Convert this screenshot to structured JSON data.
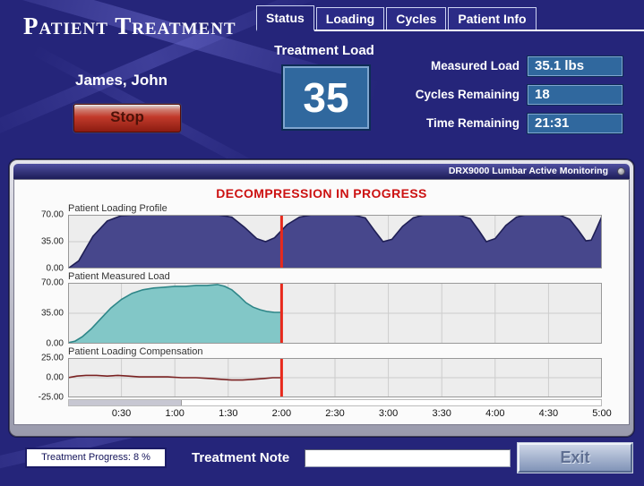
{
  "app": {
    "title": "Patient Treatment",
    "patient_name": "James, John"
  },
  "header": {
    "stop_button": "Stop",
    "tabs": [
      {
        "label": "Status",
        "active": true
      },
      {
        "label": "Loading",
        "active": false
      },
      {
        "label": "Cycles",
        "active": false
      },
      {
        "label": "Patient Info",
        "active": false
      }
    ],
    "treatment_load_label": "Treatment Load",
    "treatment_load_value": "35",
    "readouts": [
      {
        "label": "Measured Load",
        "value": "35.1 lbs"
      },
      {
        "label": "Cycles Remaining",
        "value": "18"
      },
      {
        "label": "Time Remaining",
        "value": "21:31"
      }
    ]
  },
  "monitor": {
    "titlebar": "DRX9000 Lumbar Active Monitoring",
    "pin_icon": "pin-icon",
    "status_message": "DECOMPRESSION IN PROGRESS",
    "x_axis_labels": [
      "0:30",
      "1:00",
      "1:30",
      "2:00",
      "2:30",
      "3:00",
      "3:30",
      "4:00",
      "4:30",
      "5:00"
    ]
  },
  "footer": {
    "progress_label": "Treatment Progress: 8 %",
    "note_label": "Treatment Note",
    "note_value": "",
    "exit_button": "Exit"
  },
  "colors": {
    "background": "#25257a",
    "value_box": "#30689e",
    "status_text": "#cc1111",
    "cursor": "#e8291c",
    "stop_button_red": "#c23a2b"
  },
  "chart_data": [
    {
      "type": "area",
      "title": "Patient Loading Profile",
      "plot_bg": "#ededed",
      "fill": "#47478c",
      "stroke": "#1f1f55",
      "ylim": [
        0,
        70
      ],
      "yticks": [
        70,
        35,
        0
      ],
      "ytick_labels": [
        "70.00",
        "35.00",
        "0.00"
      ],
      "x_range_seconds": [
        0,
        300
      ],
      "cursor_seconds": 120,
      "points": [
        [
          0,
          0
        ],
        [
          6,
          10
        ],
        [
          14,
          42
        ],
        [
          22,
          62
        ],
        [
          30,
          69
        ],
        [
          38,
          70
        ],
        [
          84,
          70
        ],
        [
          92,
          67
        ],
        [
          99,
          54
        ],
        [
          106,
          39
        ],
        [
          111,
          35
        ],
        [
          116,
          40
        ],
        [
          123,
          57
        ],
        [
          130,
          67
        ],
        [
          137,
          70
        ],
        [
          160,
          70
        ],
        [
          167,
          66
        ],
        [
          172,
          50
        ],
        [
          177,
          35
        ],
        [
          182,
          38
        ],
        [
          188,
          55
        ],
        [
          194,
          66
        ],
        [
          200,
          70
        ],
        [
          219,
          70
        ],
        [
          226,
          65
        ],
        [
          231,
          49
        ],
        [
          235,
          35
        ],
        [
          240,
          39
        ],
        [
          246,
          56
        ],
        [
          252,
          67
        ],
        [
          257,
          70
        ],
        [
          276,
          70
        ],
        [
          282,
          64
        ],
        [
          287,
          49
        ],
        [
          291,
          36
        ],
        [
          294,
          37
        ],
        [
          297,
          52
        ],
        [
          300,
          68
        ]
      ]
    },
    {
      "type": "area",
      "title": "Patient Measured Load",
      "plot_bg": "#ededed",
      "fill": "#82c7c7",
      "stroke": "#2e8688",
      "ylim": [
        0,
        70
      ],
      "yticks": [
        70,
        35,
        0
      ],
      "ytick_labels": [
        "70.00",
        "35.00",
        "0.00"
      ],
      "x_range_seconds": [
        0,
        300
      ],
      "cursor_seconds": 120,
      "points": [
        [
          0,
          1
        ],
        [
          4,
          3
        ],
        [
          8,
          8
        ],
        [
          13,
          17
        ],
        [
          18,
          28
        ],
        [
          24,
          41
        ],
        [
          30,
          51
        ],
        [
          36,
          58
        ],
        [
          42,
          62
        ],
        [
          48,
          64
        ],
        [
          54,
          65
        ],
        [
          60,
          66
        ],
        [
          66,
          66
        ],
        [
          72,
          67
        ],
        [
          78,
          67
        ],
        [
          84,
          68
        ],
        [
          88,
          66
        ],
        [
          92,
          62
        ],
        [
          96,
          55
        ],
        [
          100,
          47
        ],
        [
          104,
          42
        ],
        [
          108,
          39
        ],
        [
          112,
          37
        ],
        [
          116,
          36
        ],
        [
          120,
          36
        ]
      ]
    },
    {
      "type": "line",
      "title": "Patient Loading Compensation",
      "plot_bg": "#ededed",
      "fill": null,
      "stroke": "#7a2222",
      "ylim": [
        -25,
        25
      ],
      "yticks": [
        25,
        0,
        -25
      ],
      "ytick_labels": [
        "25.00",
        "0.00",
        "-25.00"
      ],
      "x_range_seconds": [
        0,
        300
      ],
      "cursor_seconds": 120,
      "points": [
        [
          0,
          0
        ],
        [
          5,
          2
        ],
        [
          10,
          3
        ],
        [
          16,
          3
        ],
        [
          22,
          2
        ],
        [
          28,
          3
        ],
        [
          34,
          2
        ],
        [
          40,
          1
        ],
        [
          48,
          1
        ],
        [
          56,
          1
        ],
        [
          64,
          0
        ],
        [
          72,
          0
        ],
        [
          80,
          -1
        ],
        [
          86,
          -2
        ],
        [
          92,
          -3
        ],
        [
          98,
          -3
        ],
        [
          104,
          -2
        ],
        [
          110,
          -1
        ],
        [
          115,
          0
        ],
        [
          120,
          0
        ]
      ]
    }
  ]
}
